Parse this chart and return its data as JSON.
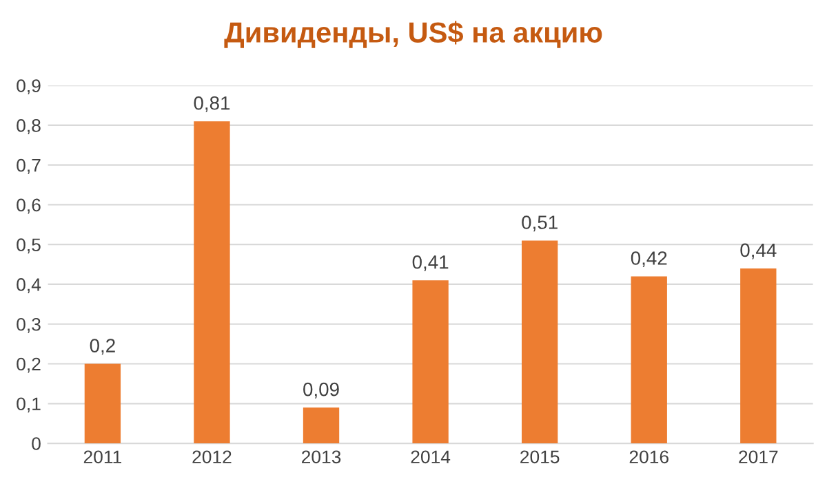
{
  "chart_data": {
    "type": "bar",
    "title": "Дивиденды, US$ на акцию",
    "categories": [
      "2011",
      "2012",
      "2013",
      "2014",
      "2015",
      "2016",
      "2017"
    ],
    "values": [
      0.2,
      0.81,
      0.09,
      0.41,
      0.51,
      0.42,
      0.44
    ],
    "value_labels": [
      "0,2",
      "0,81",
      "0,09",
      "0,41",
      "0,51",
      "0,42",
      "0,44"
    ],
    "color": "#ed7d31",
    "ylim": [
      0,
      0.9
    ],
    "yticks": [
      {
        "value": 0,
        "label": "0"
      },
      {
        "value": 0.1,
        "label": "0,1"
      },
      {
        "value": 0.2,
        "label": "0,2"
      },
      {
        "value": 0.3,
        "label": "0,3"
      },
      {
        "value": 0.4,
        "label": "0,4"
      },
      {
        "value": 0.5,
        "label": "0,5"
      },
      {
        "value": 0.6,
        "label": "0,6"
      },
      {
        "value": 0.7,
        "label": "0,7"
      },
      {
        "value": 0.8,
        "label": "0,8"
      },
      {
        "value": 0.9,
        "label": "0,9"
      }
    ],
    "grid": "y"
  }
}
